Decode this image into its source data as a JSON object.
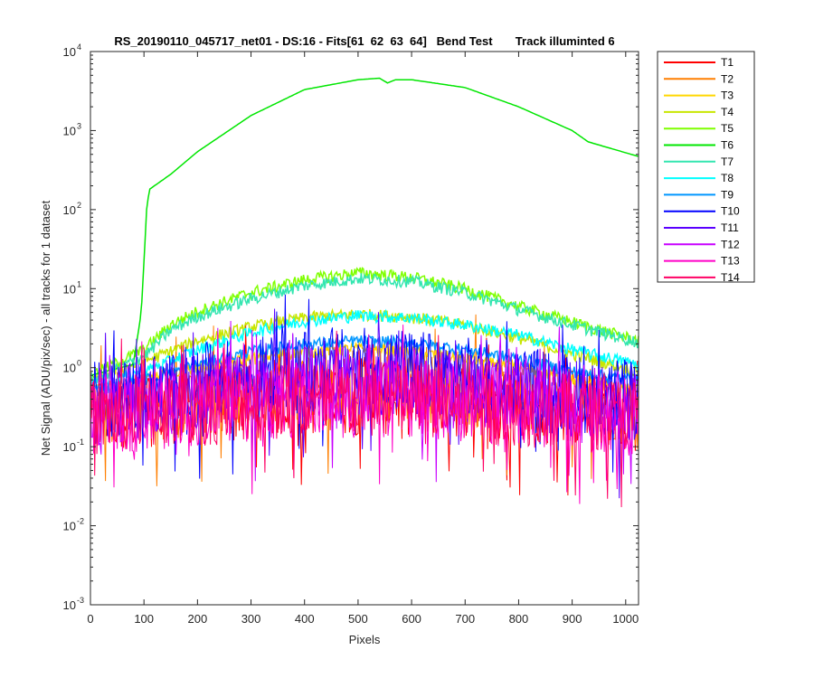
{
  "chart_data": {
    "type": "line",
    "title": "RS_20190110_045717_net01 - DS:16 - Fits[61  62  63  64]   Bend Test       Track illuminted 6",
    "xlabel": "Pixels",
    "ylabel": "Net Signal (ADU/pix/sec) - all tracks for 1 dataset",
    "xlim": [
      0,
      1024
    ],
    "ylim": [
      0.001,
      10000
    ],
    "yscale": "log",
    "xticks": [
      0,
      100,
      200,
      300,
      400,
      500,
      600,
      700,
      800,
      900,
      1000
    ],
    "xtick_labels": [
      "0",
      "100",
      "200",
      "300",
      "400",
      "500",
      "600",
      "700",
      "800",
      "900",
      "1000"
    ],
    "yticks": [
      0.001,
      0.01,
      0.1,
      1,
      10,
      100,
      1000,
      10000
    ],
    "ytick_base": "10",
    "ytick_exponents": [
      "-3",
      "-2",
      "-1",
      "0",
      "1",
      "2",
      "3",
      "4"
    ],
    "legend_position": "outside-right",
    "series": [
      {
        "name": "T1",
        "color": "#ff0000",
        "x": [
          0,
          100,
          200,
          300,
          400,
          500,
          600,
          700,
          800,
          900,
          1024
        ],
        "y": [
          0.35,
          0.4,
          0.45,
          0.5,
          0.55,
          0.55,
          0.55,
          0.5,
          0.45,
          0.4,
          0.35
        ]
      },
      {
        "name": "T2",
        "color": "#ff7f00",
        "x": [
          0,
          100,
          200,
          300,
          400,
          500,
          600,
          700,
          800,
          900,
          1024
        ],
        "y": [
          0.35,
          0.45,
          0.55,
          0.7,
          0.85,
          0.9,
          0.85,
          0.7,
          0.55,
          0.45,
          0.35
        ]
      },
      {
        "name": "T3",
        "color": "#ffd700",
        "x": [
          0,
          100,
          200,
          300,
          400,
          500,
          600,
          700,
          800,
          900,
          1024
        ],
        "y": [
          0.5,
          0.7,
          1.0,
          1.3,
          1.6,
          1.75,
          1.6,
          1.3,
          1.0,
          0.7,
          0.5
        ]
      },
      {
        "name": "T4",
        "color": "#c8e600",
        "x": [
          0,
          100,
          200,
          300,
          400,
          500,
          600,
          700,
          800,
          900,
          1024
        ],
        "y": [
          0.7,
          1.2,
          2.2,
          3.3,
          4.3,
          4.8,
          4.4,
          3.5,
          2.4,
          1.5,
          0.9
        ]
      },
      {
        "name": "T5",
        "color": "#7fff00",
        "x": [
          0,
          100,
          150,
          200,
          300,
          400,
          500,
          600,
          700,
          800,
          900,
          1024
        ],
        "y": [
          0.8,
          1.7,
          3.5,
          5.2,
          9,
          13,
          16,
          14,
          10,
          6,
          3.8,
          2.2
        ]
      },
      {
        "name": "T6",
        "color": "#00e600",
        "x": [
          0,
          80,
          95,
          105,
          110,
          150,
          200,
          300,
          400,
          500,
          540,
          555,
          570,
          600,
          700,
          800,
          900,
          930,
          1024
        ],
        "y": [
          0.8,
          1.1,
          5,
          100,
          180,
          280,
          540,
          1550,
          3300,
          4400,
          4600,
          4000,
          4400,
          4400,
          3500,
          2000,
          1000,
          720,
          470
        ]
      },
      {
        "name": "T7",
        "color": "#33e6b0",
        "x": [
          0,
          100,
          150,
          200,
          300,
          400,
          500,
          600,
          700,
          800,
          900,
          1024
        ],
        "y": [
          0.7,
          1.4,
          3,
          4.5,
          7.5,
          11,
          13.5,
          12.5,
          9,
          5.5,
          3.5,
          2.1
        ]
      },
      {
        "name": "T8",
        "color": "#00ffff",
        "x": [
          0,
          100,
          200,
          300,
          400,
          500,
          600,
          700,
          800,
          900,
          1024
        ],
        "y": [
          0.6,
          0.9,
          1.7,
          2.8,
          3.9,
          4.6,
          4.3,
          3.5,
          2.6,
          1.7,
          1.1
        ]
      },
      {
        "name": "T9",
        "color": "#0096ff",
        "x": [
          0,
          100,
          200,
          300,
          400,
          500,
          600,
          700,
          800,
          900,
          1024
        ],
        "y": [
          0.5,
          0.7,
          1.1,
          1.6,
          2.0,
          2.2,
          2.1,
          1.7,
          1.3,
          0.9,
          0.7
        ]
      },
      {
        "name": "T10",
        "color": "#0000ff",
        "x": [
          0,
          100,
          200,
          300,
          400,
          500,
          600,
          700,
          800,
          900,
          1024
        ],
        "y": [
          0.45,
          0.6,
          0.8,
          1.0,
          1.2,
          1.3,
          1.2,
          1.0,
          0.8,
          0.6,
          0.5
        ]
      },
      {
        "name": "T11",
        "color": "#5a00ff",
        "x": [
          0,
          100,
          200,
          300,
          400,
          500,
          600,
          700,
          800,
          900,
          1024
        ],
        "y": [
          0.4,
          0.5,
          0.65,
          0.8,
          0.95,
          1.0,
          0.95,
          0.8,
          0.65,
          0.5,
          0.4
        ]
      },
      {
        "name": "T12",
        "color": "#c800ff",
        "x": [
          0,
          100,
          200,
          300,
          400,
          500,
          600,
          700,
          800,
          900,
          1024
        ],
        "y": [
          0.35,
          0.45,
          0.55,
          0.65,
          0.75,
          0.8,
          0.75,
          0.65,
          0.55,
          0.45,
          0.35
        ]
      },
      {
        "name": "T13",
        "color": "#ff00c8",
        "x": [
          0,
          100,
          200,
          300,
          400,
          500,
          600,
          700,
          800,
          900,
          1024
        ],
        "y": [
          0.3,
          0.35,
          0.4,
          0.45,
          0.5,
          0.5,
          0.5,
          0.45,
          0.4,
          0.35,
          0.3
        ]
      },
      {
        "name": "T14",
        "color": "#ff0064",
        "x": [
          0,
          100,
          200,
          300,
          400,
          500,
          600,
          700,
          800,
          900,
          1024
        ],
        "y": [
          0.3,
          0.35,
          0.4,
          0.45,
          0.5,
          0.5,
          0.5,
          0.45,
          0.4,
          0.35,
          0.3
        ]
      }
    ]
  }
}
